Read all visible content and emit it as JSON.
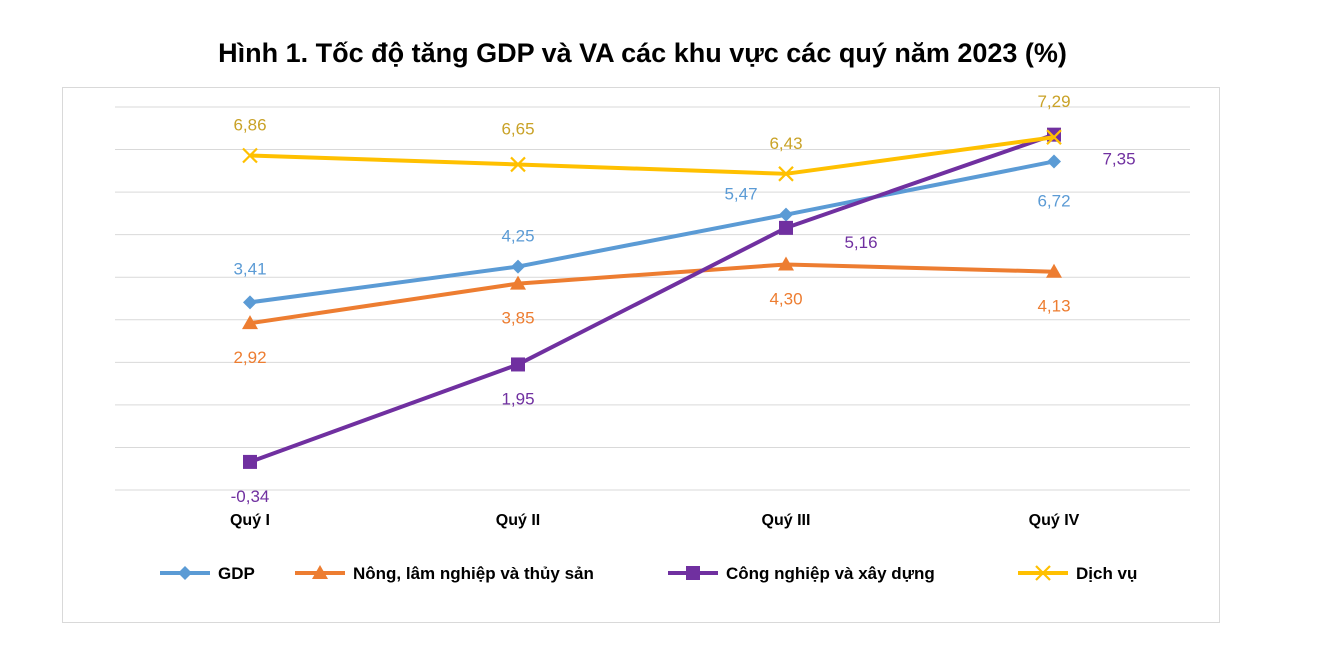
{
  "chart_data": {
    "type": "line",
    "title": "Hình 1. Tốc độ tăng GDP và VA các khu vực các quý năm 2023 (%)",
    "categories": [
      "Quý I",
      "Quý II",
      "Quý III",
      "Quý IV"
    ],
    "ylim": [
      -1,
      8
    ],
    "grid": true,
    "legend_position": "bottom",
    "series": [
      {
        "name": "GDP",
        "values": [
          3.41,
          4.25,
          5.47,
          6.72
        ],
        "labels": [
          "3,41",
          "4,25",
          "5,47",
          "6,72"
        ],
        "color": "#5b9bd5",
        "marker": "diamond"
      },
      {
        "name": "Nông, lâm nghiệp và thủy sản",
        "values": [
          2.92,
          3.85,
          4.3,
          4.13
        ],
        "labels": [
          "2,92",
          "3,85",
          "4,30",
          "4,13"
        ],
        "color": "#ed7d31",
        "marker": "triangle"
      },
      {
        "name": "Công  nghiệp và xây dựng",
        "values": [
          -0.34,
          1.95,
          5.16,
          7.35
        ],
        "labels": [
          "-0,34",
          "1,95",
          "5,16",
          "7,35"
        ],
        "color": "#7030a0",
        "marker": "square"
      },
      {
        "name": "Dịch vụ",
        "values": [
          6.86,
          6.65,
          6.43,
          7.29
        ],
        "labels": [
          "6,86",
          "6,65",
          "6,43",
          "7,29"
        ],
        "color": "#ffc000",
        "marker": "x"
      }
    ]
  }
}
